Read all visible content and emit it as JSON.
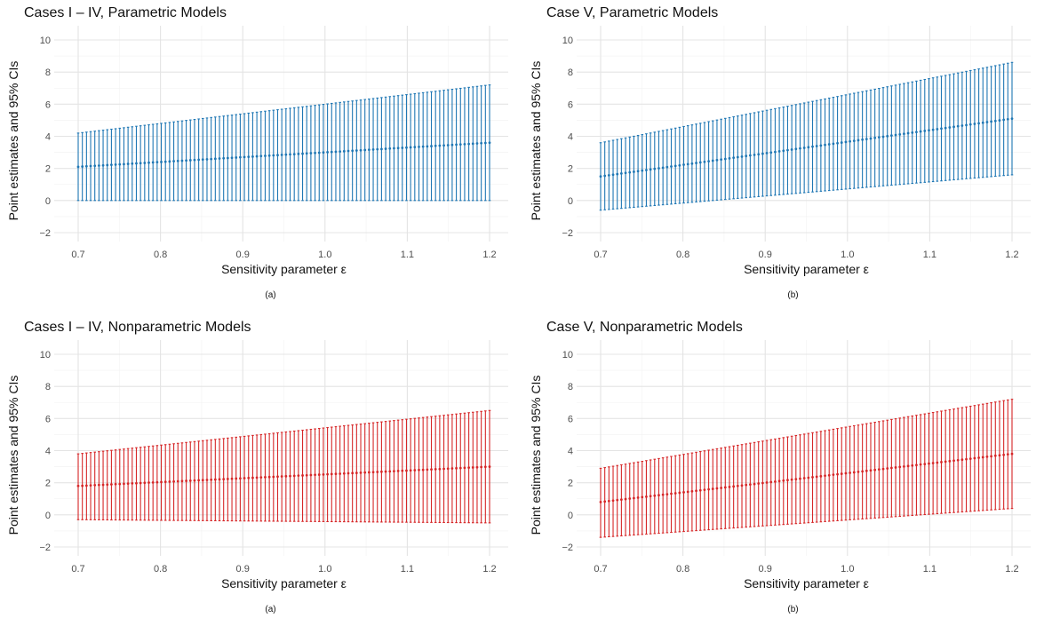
{
  "chart_data": [
    {
      "type": "errorbar",
      "title": "Cases I – IV, Parametric Models",
      "xlabel": "Sensitivity parameter ε",
      "ylabel": "Point estimates and 95% CIs",
      "caption": "(a)",
      "color": "#1f77b4",
      "xlim": [
        0.7,
        1.2
      ],
      "ylim": [
        -2,
        10
      ],
      "x_ticks": [
        "0.7",
        "0.8",
        "0.9",
        "1.0",
        "1.1",
        "1.2"
      ],
      "y_ticks": [
        "−2",
        "0",
        "2",
        "4",
        "6",
        "8",
        "10"
      ],
      "n_points": 100,
      "estimate": {
        "start": 2.1,
        "end": 3.6
      },
      "lower": {
        "start": 0.0,
        "end": 0.0
      },
      "upper": {
        "start": 4.2,
        "end": 7.2
      }
    },
    {
      "type": "errorbar",
      "title": "Case V, Parametric Models",
      "xlabel": "Sensitivity parameter ε",
      "ylabel": "Point estimates and 95% CIs",
      "caption": "(b)",
      "color": "#1f77b4",
      "xlim": [
        0.7,
        1.2
      ],
      "ylim": [
        -2,
        10
      ],
      "x_ticks": [
        "0.7",
        "0.8",
        "0.9",
        "1.0",
        "1.1",
        "1.2"
      ],
      "y_ticks": [
        "−2",
        "0",
        "2",
        "4",
        "6",
        "8",
        "10"
      ],
      "n_points": 100,
      "estimate": {
        "start": 1.5,
        "end": 5.1
      },
      "lower": {
        "start": -0.6,
        "end": 1.6
      },
      "upper": {
        "start": 3.6,
        "end": 8.6
      }
    },
    {
      "type": "errorbar",
      "title": "Cases I – IV, Nonparametric Models",
      "xlabel": "Sensitivity parameter ε",
      "ylabel": "Point estimates and 95% CIs",
      "caption": "(a)",
      "color": "#d62728",
      "xlim": [
        0.7,
        1.2
      ],
      "ylim": [
        -2,
        10
      ],
      "x_ticks": [
        "0.7",
        "0.8",
        "0.9",
        "1.0",
        "1.1",
        "1.2"
      ],
      "y_ticks": [
        "−2",
        "0",
        "2",
        "4",
        "6",
        "8",
        "10"
      ],
      "n_points": 100,
      "estimate": {
        "start": 1.8,
        "end": 3.0
      },
      "lower": {
        "start": -0.3,
        "end": -0.5
      },
      "upper": {
        "start": 3.8,
        "end": 6.5
      }
    },
    {
      "type": "errorbar",
      "title": "Case V, Nonparametric Models",
      "xlabel": "Sensitivity parameter ε",
      "ylabel": "Point estimates and 95% CIs",
      "caption": "(b)",
      "color": "#d62728",
      "xlim": [
        0.7,
        1.2
      ],
      "ylim": [
        -2,
        10
      ],
      "x_ticks": [
        "0.7",
        "0.8",
        "0.9",
        "1.0",
        "1.1",
        "1.2"
      ],
      "y_ticks": [
        "−2",
        "0",
        "2",
        "4",
        "6",
        "8",
        "10"
      ],
      "n_points": 100,
      "estimate": {
        "start": 0.8,
        "end": 3.8
      },
      "lower": {
        "start": -1.4,
        "end": 0.4
      },
      "upper": {
        "start": 2.9,
        "end": 7.2
      }
    }
  ]
}
